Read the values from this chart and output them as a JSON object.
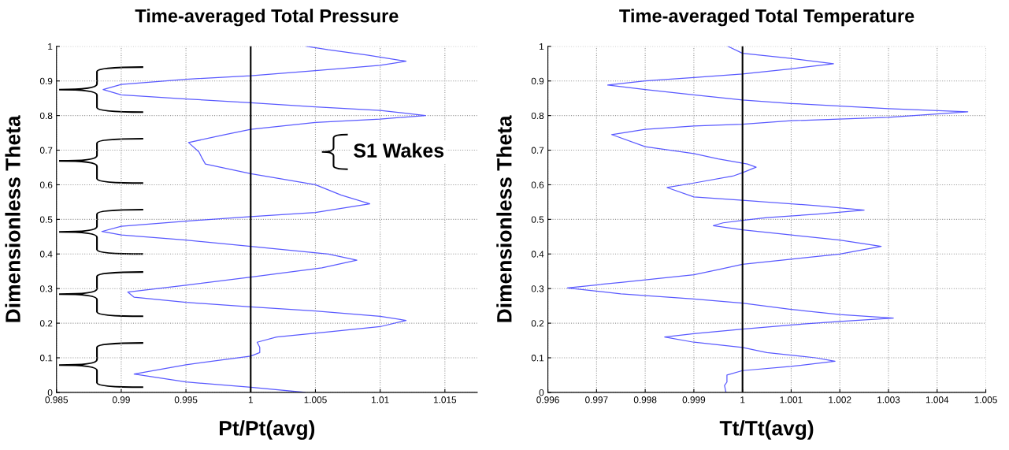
{
  "chart_data": [
    {
      "type": "line",
      "title": "Time-averaged Total Pressure",
      "xlabel": "Pt/Pt(avg)",
      "ylabel": "Dimensionless Theta",
      "xlim": [
        0.985,
        1.0175
      ],
      "xticks": [
        0.985,
        0.99,
        0.995,
        1,
        1.005,
        1.01,
        1.015
      ],
      "ylim": [
        0,
        1
      ],
      "yticks": [
        0,
        0.1,
        0.2,
        0.3,
        0.4,
        0.5,
        0.6,
        0.7,
        0.8,
        0.9,
        1
      ],
      "grid": true,
      "line_style": "solid",
      "marker": "none",
      "ref_lines": [
        {
          "axis": "x",
          "value": 1,
          "color": "#000000"
        }
      ],
      "annotations": [
        "S1 Wakes"
      ],
      "series": [
        {
          "color": "#5a5aff",
          "x": [
            1.0042,
            1.0,
            0.995,
            0.991,
            0.995,
            1.0,
            1.0007,
            1.0007,
            1.0005,
            1.002,
            1.006,
            1.01,
            1.012,
            1.01,
            1.005,
            1.0,
            0.995,
            0.991,
            0.9905,
            0.995,
            1.0,
            1.0055,
            1.0082,
            1.006,
            1.0,
            0.995,
            0.99,
            0.9885,
            0.99,
            0.995,
            1.0,
            1.005,
            1.0092,
            1.007,
            1.005,
            1.0,
            0.9965,
            0.9962,
            0.996,
            0.9952,
            0.998,
            1.0,
            1.005,
            1.01,
            1.0135,
            1.01,
            1.005,
            1.0,
            0.995,
            0.99,
            0.9886,
            0.99,
            0.995,
            1.0,
            1.005,
            1.01,
            1.012,
            1.009,
            1.006,
            1.0043
          ],
          "values": [
            0,
            0.015,
            0.03,
            0.053,
            0.08,
            0.105,
            0.115,
            0.13,
            0.145,
            0.16,
            0.175,
            0.19,
            0.208,
            0.22,
            0.235,
            0.247,
            0.26,
            0.275,
            0.29,
            0.31,
            0.333,
            0.36,
            0.382,
            0.4,
            0.422,
            0.44,
            0.455,
            0.465,
            0.48,
            0.495,
            0.508,
            0.52,
            0.545,
            0.57,
            0.6,
            0.632,
            0.66,
            0.68,
            0.695,
            0.722,
            0.745,
            0.76,
            0.78,
            0.79,
            0.8,
            0.815,
            0.825,
            0.837,
            0.848,
            0.86,
            0.875,
            0.89,
            0.905,
            0.915,
            0.93,
            0.945,
            0.957,
            0.975,
            0.99,
            1.0
          ]
        }
      ]
    },
    {
      "type": "line",
      "title": "Time-averaged Total Temperature",
      "xlabel": "Tt/Tt(avg)",
      "ylabel": "Dimensionless Theta",
      "xlim": [
        0.996,
        1.005
      ],
      "xticks": [
        0.996,
        0.997,
        0.998,
        0.999,
        1,
        1.001,
        1.002,
        1.003,
        1.004,
        1.005
      ],
      "ylim": [
        0,
        1
      ],
      "yticks": [
        0,
        0.1,
        0.2,
        0.3,
        0.4,
        0.5,
        0.6,
        0.7,
        0.8,
        0.9,
        1
      ],
      "grid": true,
      "line_style": "solid",
      "marker": "none",
      "ref_lines": [
        {
          "axis": "x",
          "value": 1,
          "color": "#000000"
        }
      ],
      "series": [
        {
          "color": "#5a5aff",
          "x": [
            0.99966,
            0.99963,
            0.99968,
            0.99968,
            1.0,
            1.001,
            1.0019,
            1.0015,
            1.0005,
            1.0,
            0.999,
            0.9984,
            0.999,
            1.0,
            1.001,
            1.002,
            1.0031,
            1.002,
            1.001,
            1.0,
            0.999,
            0.9975,
            0.9964,
            0.9975,
            0.999,
            0.9995,
            1.0,
            1.001,
            1.002,
            1.00285,
            1.002,
            1.001,
            1.0,
            0.9994,
            0.9996,
            1.0,
            1.0005,
            1.0015,
            1.0025,
            1.0015,
            1.0,
            0.999,
            0.99845,
            0.999,
            0.9998,
            1.0,
            1.00028,
            1.0001,
            0.9995,
            0.999,
            0.998,
            0.99731,
            0.998,
            0.999,
            1.0,
            1.001,
            1.003,
            1.00463,
            1.003,
            1.001,
            1.0,
            0.999,
            0.998,
            0.99723,
            0.998,
            0.999,
            1.0,
            1.001,
            1.00187,
            1.001,
            1.0,
            0.9997
          ],
          "values": [
            0,
            0.02,
            0.03,
            0.05,
            0.063,
            0.075,
            0.09,
            0.1,
            0.115,
            0.13,
            0.145,
            0.16,
            0.17,
            0.183,
            0.195,
            0.205,
            0.215,
            0.225,
            0.24,
            0.258,
            0.27,
            0.285,
            0.302,
            0.318,
            0.34,
            0.355,
            0.37,
            0.385,
            0.4,
            0.422,
            0.44,
            0.455,
            0.47,
            0.482,
            0.49,
            0.497,
            0.505,
            0.515,
            0.527,
            0.54,
            0.555,
            0.565,
            0.592,
            0.605,
            0.625,
            0.635,
            0.651,
            0.66,
            0.675,
            0.69,
            0.71,
            0.745,
            0.76,
            0.77,
            0.775,
            0.785,
            0.795,
            0.811,
            0.82,
            0.835,
            0.845,
            0.86,
            0.875,
            0.888,
            0.9,
            0.91,
            0.92,
            0.935,
            0.95,
            0.965,
            0.98,
            1.0
          ]
        }
      ]
    }
  ]
}
